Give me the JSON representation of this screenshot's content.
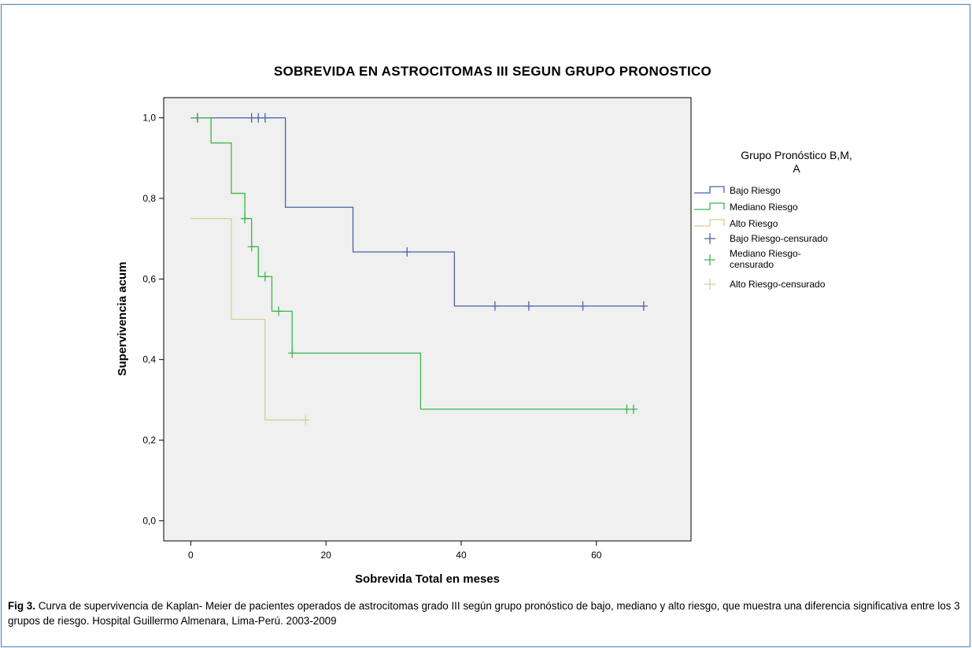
{
  "chart_data": {
    "type": "line",
    "title": "SOBREVIDA EN ASTROCITOMAS III SEGUN GRUPO PRONOSTICO",
    "xlabel": "Sobrevida Total en meses",
    "ylabel": "Supervivencia acum",
    "xlim": [
      -4,
      74
    ],
    "ylim": [
      -0.05,
      1.05
    ],
    "xticks": [
      0,
      20,
      40,
      60
    ],
    "yticks": [
      0.0,
      0.2,
      0.4,
      0.6,
      0.8,
      1.0
    ],
    "xtick_labels": [
      "0",
      "20",
      "40",
      "60"
    ],
    "ytick_labels": [
      "0,0",
      "0,2",
      "0,4",
      "0,6",
      "0,8",
      "1,0"
    ],
    "grid": false,
    "background": "#f0f0f0",
    "legend_title": "Grupo Pronóstico B,M, A",
    "legend_position": "right",
    "series": [
      {
        "name": "Bajo Riesgo",
        "censored_name": "Bajo Riesgo-censurado",
        "color": "#4a62a8",
        "steps": [
          [
            0,
            1.0
          ],
          [
            14,
            0.778
          ],
          [
            24,
            0.667
          ],
          [
            39,
            0.533
          ],
          [
            67,
            0.533
          ]
        ],
        "censored": [
          [
            1,
            1.0
          ],
          [
            9,
            1.0
          ],
          [
            10,
            1.0
          ],
          [
            11,
            1.0
          ],
          [
            32,
            0.667
          ],
          [
            45,
            0.533
          ],
          [
            50,
            0.533
          ],
          [
            58,
            0.533
          ],
          [
            67,
            0.533
          ]
        ]
      },
      {
        "name": "Mediano Riesgo",
        "censored_name": "Mediano Riesgo-censurado",
        "color": "#3ab54a",
        "steps": [
          [
            0,
            1.0
          ],
          [
            3,
            0.9375
          ],
          [
            6,
            0.8125
          ],
          [
            8,
            0.75
          ],
          [
            9,
            0.68
          ],
          [
            10,
            0.606
          ],
          [
            12,
            0.52
          ],
          [
            15,
            0.416
          ],
          [
            34,
            0.277
          ],
          [
            65.5,
            0.277
          ]
        ],
        "censored": [
          [
            8,
            0.75
          ],
          [
            9,
            0.68
          ],
          [
            11,
            0.606
          ],
          [
            13,
            0.52
          ],
          [
            15,
            0.416
          ],
          [
            64.5,
            0.277
          ],
          [
            65.5,
            0.277
          ]
        ]
      },
      {
        "name": "Alto Riesgo",
        "censored_name": "Alto Riesgo-censurado",
        "color": "#d8cd94",
        "steps": [
          [
            0,
            0.75
          ],
          [
            6,
            0.5
          ],
          [
            11,
            0.25
          ],
          [
            17,
            0.25
          ]
        ],
        "censored": [
          [
            17,
            0.25
          ]
        ]
      }
    ]
  },
  "caption": {
    "label": "Fig 3.",
    "text": " Curva de supervivencia de Kaplan- Meier de pacientes operados de astrocitomas grado III según grupo pronóstico de bajo, mediano y alto riesgo, que muestra una diferencia significativa entre los 3 grupos de riesgo. Hospital Guillermo Almenara, Lima-Perú. 2003-2009"
  }
}
